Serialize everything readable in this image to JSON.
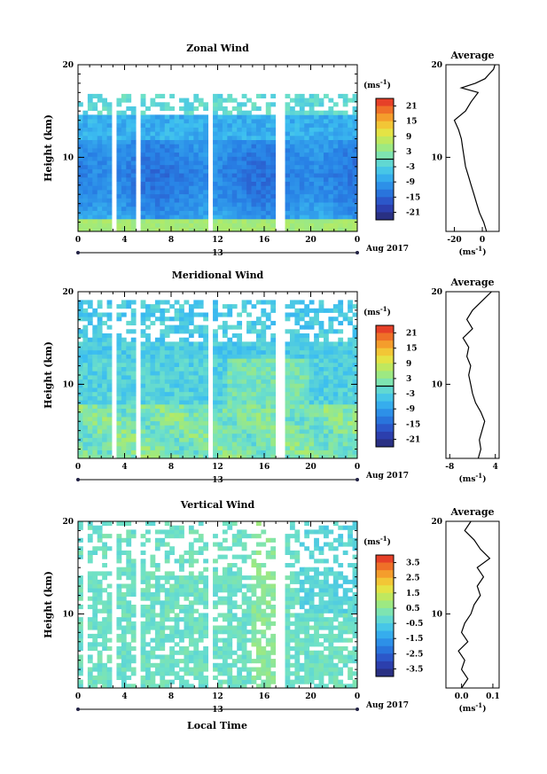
{
  "figure": {
    "xlabel_bottom": "Local Time",
    "date_label": "Aug 2017",
    "date_day": "13"
  },
  "chart_data": [
    {
      "type": "heatmap",
      "title": "Zonal Wind",
      "xlabel": "",
      "ylabel": "Height (km)",
      "x_ticks": [
        "0",
        "4",
        "8",
        "12",
        "16",
        "20",
        "0"
      ],
      "x_range": [
        0,
        24
      ],
      "y_ticks": [
        "10",
        "20"
      ],
      "y_range": [
        2,
        20
      ],
      "colorbar": {
        "unit_base": "(ms",
        "unit_exp": "-1",
        "unit_close": ")",
        "ticks": [
          "21",
          "15",
          "9",
          "3",
          "-3",
          "-9",
          "-15",
          "-21"
        ],
        "range": [
          -24,
          24
        ],
        "zero_line": 0
      },
      "gaps_hours": [
        3.2,
        5.2,
        11.4,
        17.4
      ],
      "data_top_km": 17.0,
      "profile": {
        "title": "Average",
        "x_ticks": [
          "-20",
          "0"
        ],
        "x_range": [
          -26,
          12
        ],
        "xlabel_base": "(ms",
        "xlabel_exp": "-1",
        "xlabel_close": ")",
        "heights_km": [
          2,
          3,
          4,
          5,
          6,
          7,
          8,
          9,
          10,
          11,
          12,
          13,
          14,
          15,
          16,
          17,
          17.5,
          18,
          18.5,
          19,
          19.5,
          20
        ],
        "values": [
          3,
          1,
          -2,
          -4,
          -6,
          -8,
          -10,
          -12,
          -13,
          -14,
          -15,
          -17,
          -20,
          -12,
          -8,
          -3,
          -15,
          -5,
          2,
          5,
          8,
          9
        ]
      }
    },
    {
      "type": "heatmap",
      "title": "Meridional Wind",
      "xlabel": "",
      "ylabel": "Height (km)",
      "x_ticks": [
        "0",
        "4",
        "8",
        "12",
        "16",
        "20",
        "0"
      ],
      "x_range": [
        0,
        24
      ],
      "y_ticks": [
        "10",
        "20"
      ],
      "y_range": [
        2,
        20
      ],
      "colorbar": {
        "unit_base": "(ms",
        "unit_exp": "-1",
        "unit_close": ")",
        "ticks": [
          "21",
          "15",
          "9",
          "3",
          "-3",
          "-9",
          "-15",
          "-21"
        ],
        "range": [
          -24,
          24
        ],
        "zero_line": 0
      },
      "gaps_hours": [
        3.2,
        5.2,
        11.4,
        17.4
      ],
      "data_top_km": 19.0,
      "profile": {
        "title": "Average",
        "x_ticks": [
          "-8",
          "4"
        ],
        "x_range": [
          -9,
          5
        ],
        "xlabel_base": "(ms",
        "xlabel_exp": "-1",
        "xlabel_close": ")",
        "heights_km": [
          2,
          3,
          4,
          5,
          6,
          7,
          8,
          9,
          10,
          11,
          12,
          13,
          14,
          15,
          16,
          17,
          18,
          19,
          20
        ],
        "values": [
          -0.5,
          0.2,
          -0.2,
          0.5,
          1.2,
          0.2,
          -1.2,
          -2.0,
          -2.5,
          -3.0,
          -2.5,
          -3.5,
          -3.0,
          -4.5,
          -2.0,
          -3.5,
          -2.0,
          0.5,
          3.0
        ]
      }
    },
    {
      "type": "heatmap",
      "title": "Vertical Wind",
      "xlabel": "Local Time",
      "ylabel": "Height (km)",
      "x_ticks": [
        "0",
        "4",
        "8",
        "12",
        "16",
        "20",
        "0"
      ],
      "x_range": [
        0,
        24
      ],
      "y_ticks": [
        "10",
        "20"
      ],
      "y_range": [
        2,
        20
      ],
      "colorbar": {
        "unit_base": "(ms",
        "unit_exp": "-1",
        "unit_close": ")",
        "ticks": [
          "3.5",
          "2.5",
          "1.5",
          "0.5",
          "-0.5",
          "-1.5",
          "-2.5",
          "-3.5"
        ],
        "range": [
          -4,
          4
        ],
        "zero_line": null
      },
      "gaps_hours": [
        0.5,
        3.0,
        5.2,
        11.3,
        17.4
      ],
      "data_top_km": 20.0,
      "profile": {
        "title": "Average",
        "x_ticks": [
          "0.0",
          "0.1"
        ],
        "x_range": [
          -0.05,
          0.12
        ],
        "xlabel_base": "(ms",
        "xlabel_exp": "-1",
        "xlabel_close": ")",
        "heights_km": [
          2,
          3,
          4,
          5,
          6,
          7,
          8,
          9,
          10,
          11,
          12,
          13,
          14,
          15,
          16,
          17,
          18,
          19,
          20
        ],
        "values": [
          0.0,
          0.02,
          0.0,
          0.01,
          -0.01,
          0.02,
          0.0,
          0.01,
          0.03,
          0.04,
          0.06,
          0.05,
          0.07,
          0.05,
          0.09,
          0.06,
          0.04,
          0.01,
          0.03
        ]
      }
    }
  ]
}
